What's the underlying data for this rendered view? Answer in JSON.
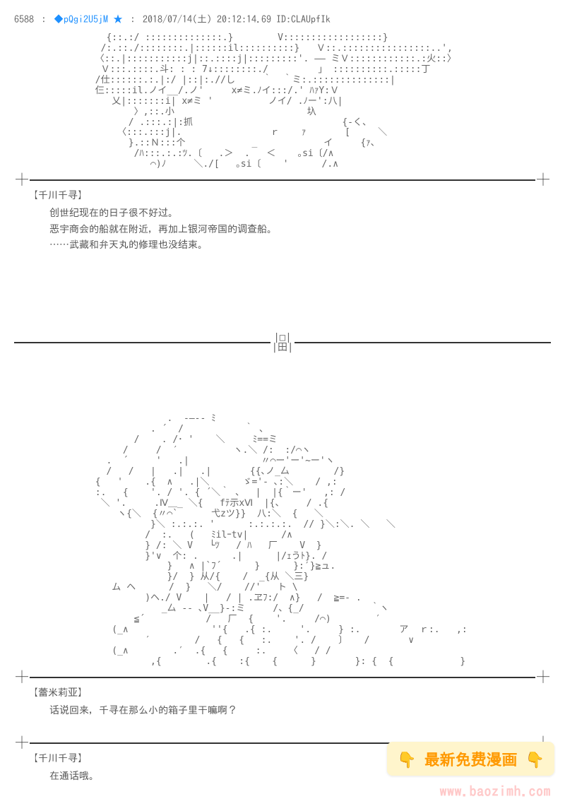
{
  "post": {
    "number": "6588",
    "sep": "：",
    "trip": "◆pQgi2U5jM",
    "star": "★",
    "date": "2018/07/14(土) 20:12:14.69",
    "id": "ID:CLAUpfIk"
  },
  "aa1": "         {::.:/ ::::::::::::::.}        V::::::::::::::::::}\n        /:.::./::::::::.|::::::il::::::::::}   Ｖ::.::::::::::::::::..',\n       〈::.|:::::::::::j|::.::::j|:::::::::'. ―― ミＶ::::::::::::.:火::〉\n        Ｖ:::.::::.斗: : : 7↓::::::::./         」 ::::::::::.:::::丁\n       /仕::::::.:.|:/ |::|:.//し     ｀  ｀ミ:.::::::::::::::|\n       仨:::::il.ノイ__/.ノ'     x≠ミ.ﾉイ:::/.' ﾊｧY:Ｖ\n          乂|:::::::i| x≠ミ '          ノイ/ .ﾉー':八|\n              〉,::.小                        圦\n             / .:::.:|:抓                           {-く、\n           〈:::.:::j|.                ｒ    ｧ       [     ＼\n             }.::Ｎ:::个            _            イ     {ｧ、\n              /ﾊ:::.:.:ﾂ.〔   .＞  .   ＜    ｡si〔/∧\n                 ⌒)ﾉ     ＼./[   ｡si〔    '      /.∧",
  "speaker1": "【千川千寻】",
  "dialogue1_line1": "创世纪现在的日子很不好过。",
  "dialogue1_line2": "恶宇商会的船就在附近，再加上银河帝国的调查船。",
  "dialogue1_line3": "……武藏和弁天丸的修理也没结束。",
  "midbox": "|□|\n|田|",
  "aa2": "                    .  -―‐- ﾐ\n                 . ´  /           ｀ 、\n              /    . /･ '    ＼     ﾐ==ミ\n            /     /  ′          ヽ.＼ /:  :/⌒ヽ\n         .  ´     '   .|             〃⌒ー'ー'~ー'ヽ\n         /   /   |   .|   .|       {{､ノ_厶        /}\n       {   '    .{  ∧   .|＼      ゞ='- ､:＼    / ,:\n       :.   {    '. / '. { ´＼｀ 、  |  |{｀ー'   ,: /\n        ＼ '.     .Ⅳ＿_ ＼{   fﾃ示xⅥ  |{、    / .{\n           ヽ{＼  {〃⌒`      弋zツ}}  八:＼  {   ＼\n                 }＼ :.:.:. '      :.:.:.:.  // }＼:＼. ＼   ＼\n                /  :.   (   ﾐilｰtv|      /∧\n                } /: ＼ V   └ﾂ   / ﾊ   厂    V  }\n                }'∨  个: .      .|      |/ｪうﾄ}. /\n                    }   ∧ |`ﾌ´      }      }:′}≧ュ.\n                    }/  } 从/{    /  _{从 ＼三}\n          ム ヘ      /  }   ＼/    //'   ト \\\n                )ヘ./ V    |   / | .ヱﾌ:/  ∧}   /  ≧=- .\n                   _厶 -- ､V__}-:ミ     /、{_/            ｀ヽ\n              ≦´           /   厂  {    '.     /⌒)        ′\n          (_∧               ''{   .{ :.     '.     } :.       ア  ｒ:.   ,:\n                ′        /   {   {   :.    '. /    〕   /       ∨\n          (_∧        .′  .{   {     :.    〈   / /\n                 ,{        .{    :{    {      }       }: {  {            }",
  "speaker2": "【蕾米莉亚】",
  "dialogue2": "话说回来，千寻在那么小的箱子里干嘛啊？",
  "speaker3": "【千川千寻】",
  "dialogue3": "在通话哦。",
  "watermark": {
    "text": "最新免费漫画",
    "url": "www.baozimh.com"
  }
}
